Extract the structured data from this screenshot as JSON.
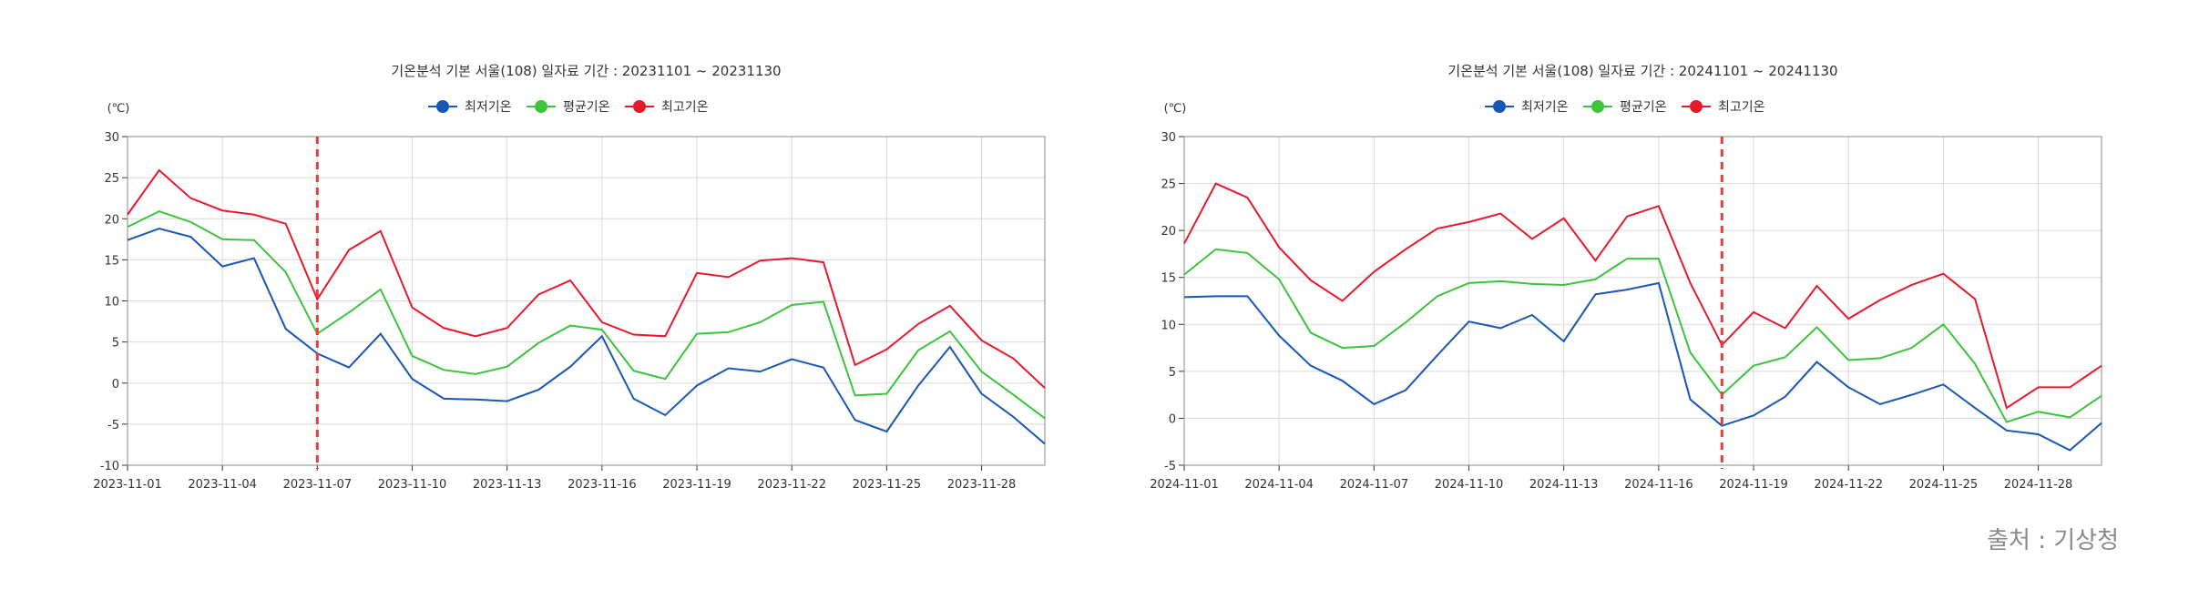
{
  "source_text": "출처 : 기상청",
  "colors": {
    "min": "#1a56b8",
    "avg": "#3cc43c",
    "max": "#e8192c",
    "marker": "#f03a3a",
    "grid": "#d9d9d9"
  },
  "chart_data": [
    {
      "type": "line",
      "title": "기온분석 기본 서울(108) 일자료 기간 : 20231101 ~ 20231130",
      "ylabel": "(℃)",
      "xlabel": "",
      "ylim": [
        -10,
        30
      ],
      "yticks": [
        -10,
        -5,
        0,
        5,
        10,
        15,
        20,
        25,
        30
      ],
      "xtick_labels": [
        "2023-11-01",
        "2023-11-04",
        "2023-11-07",
        "2023-11-10",
        "2023-11-13",
        "2023-11-16",
        "2023-11-19",
        "2023-11-22",
        "2023-11-25",
        "2023-11-28"
      ],
      "x": [
        "2023-11-01",
        "2023-11-02",
        "2023-11-03",
        "2023-11-04",
        "2023-11-05",
        "2023-11-06",
        "2023-11-07",
        "2023-11-08",
        "2023-11-09",
        "2023-11-10",
        "2023-11-11",
        "2023-11-12",
        "2023-11-13",
        "2023-11-14",
        "2023-11-15",
        "2023-11-16",
        "2023-11-17",
        "2023-11-18",
        "2023-11-19",
        "2023-11-20",
        "2023-11-21",
        "2023-11-22",
        "2023-11-23",
        "2023-11-24",
        "2023-11-25",
        "2023-11-26",
        "2023-11-27",
        "2023-11-28",
        "2023-11-29",
        "2023-11-30"
      ],
      "marker_date": "2023-11-07",
      "legend_position": "top-center",
      "grid": true,
      "series": [
        {
          "name": "최저기온",
          "color": "#1a56b8",
          "values": [
            17.4,
            18.8,
            17.8,
            14.2,
            15.2,
            6.6,
            3.6,
            1.9,
            6.0,
            0.5,
            -1.9,
            -2.0,
            -2.2,
            -0.8,
            2.0,
            5.7,
            -1.9,
            -3.9,
            -0.3,
            1.8,
            1.4,
            2.9,
            1.9,
            -4.5,
            -5.9,
            -0.3,
            4.4,
            -1.3,
            -4.1,
            -7.4
          ]
        },
        {
          "name": "평균기온",
          "color": "#3cc43c",
          "values": [
            19.0,
            20.9,
            19.6,
            17.5,
            17.4,
            13.5,
            6.0,
            8.6,
            11.4,
            3.3,
            1.6,
            1.1,
            2.0,
            4.9,
            7.0,
            6.5,
            1.5,
            0.5,
            6.0,
            6.2,
            7.4,
            9.5,
            9.9,
            -1.5,
            -1.3,
            4.0,
            6.3,
            1.4,
            -1.4,
            -4.3
          ]
        },
        {
          "name": "최고기온",
          "color": "#e8192c",
          "values": [
            20.5,
            25.9,
            22.5,
            21.0,
            20.5,
            19.4,
            10.2,
            16.2,
            18.5,
            9.2,
            6.7,
            5.7,
            6.7,
            10.8,
            12.5,
            7.4,
            5.9,
            5.7,
            13.4,
            12.9,
            14.9,
            15.2,
            14.7,
            2.2,
            4.1,
            7.2,
            9.4,
            5.2,
            3.0,
            -0.6
          ]
        }
      ]
    },
    {
      "type": "line",
      "title": "기온분석 기본 서울(108) 일자료 기간 : 20241101 ~ 20241130",
      "ylabel": "(℃)",
      "xlabel": "",
      "ylim": [
        -5,
        30
      ],
      "yticks": [
        -5,
        0,
        5,
        10,
        15,
        20,
        25,
        30
      ],
      "xtick_labels": [
        "2024-11-01",
        "2024-11-04",
        "2024-11-07",
        "2024-11-10",
        "2024-11-13",
        "2024-11-16",
        "2024-11-19",
        "2024-11-22",
        "2024-11-25",
        "2024-11-28"
      ],
      "x": [
        "2024-11-01",
        "2024-11-02",
        "2024-11-03",
        "2024-11-04",
        "2024-11-05",
        "2024-11-06",
        "2024-11-07",
        "2024-11-08",
        "2024-11-09",
        "2024-11-10",
        "2024-11-11",
        "2024-11-12",
        "2024-11-13",
        "2024-11-14",
        "2024-11-15",
        "2024-11-16",
        "2024-11-17",
        "2024-11-18",
        "2024-11-19",
        "2024-11-20",
        "2024-11-21",
        "2024-11-22",
        "2024-11-23",
        "2024-11-24",
        "2024-11-25",
        "2024-11-26",
        "2024-11-27",
        "2024-11-28",
        "2024-11-29",
        "2024-11-30"
      ],
      "marker_date": "2024-11-18",
      "legend_position": "top-center",
      "grid": true,
      "series": [
        {
          "name": "최저기온",
          "color": "#1a56b8",
          "values": [
            12.9,
            13.0,
            13.0,
            8.8,
            5.6,
            4.0,
            1.5,
            3.0,
            6.7,
            10.3,
            9.6,
            11.0,
            8.2,
            13.2,
            13.7,
            14.4,
            2.0,
            -0.8,
            0.3,
            2.3,
            6.0,
            3.3,
            1.5,
            2.5,
            3.6,
            1.1,
            -1.3,
            -1.7,
            -3.4,
            -0.5
          ]
        },
        {
          "name": "평균기온",
          "color": "#3cc43c",
          "values": [
            15.3,
            18.0,
            17.6,
            14.8,
            9.1,
            7.5,
            7.7,
            10.2,
            13.0,
            14.4,
            14.6,
            14.3,
            14.2,
            14.8,
            17.0,
            17.0,
            7.0,
            2.5,
            5.6,
            6.5,
            9.7,
            6.2,
            6.4,
            7.5,
            10.0,
            5.8,
            -0.4,
            0.7,
            0.1,
            2.4
          ]
        },
        {
          "name": "최고기온",
          "color": "#e8192c",
          "values": [
            18.6,
            25.0,
            23.5,
            18.2,
            14.7,
            12.5,
            15.6,
            18.0,
            20.2,
            20.9,
            21.8,
            19.1,
            21.3,
            16.8,
            21.5,
            22.6,
            14.4,
            7.8,
            11.3,
            9.6,
            14.1,
            10.6,
            12.6,
            14.2,
            15.4,
            12.7,
            1.1,
            3.3,
            3.3,
            5.6
          ]
        }
      ]
    }
  ]
}
